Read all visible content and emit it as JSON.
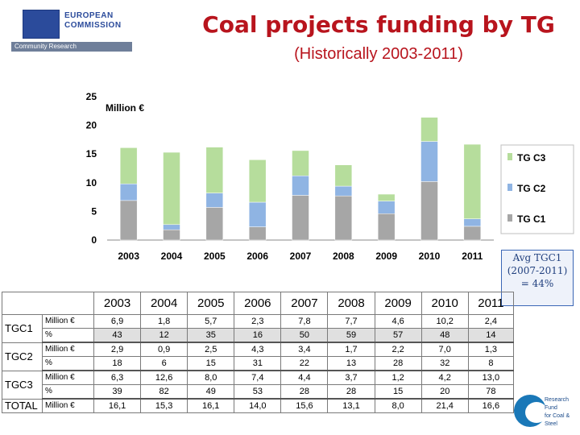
{
  "header": {
    "org_line1": "EUROPEAN",
    "org_line2": "COMMISSION",
    "org_sub": "Community Research",
    "title": "Coal projects funding by TG",
    "subtitle": "(Historically 2003-2011)"
  },
  "chart_data": {
    "type": "bar",
    "stacked": true,
    "categories": [
      "2003",
      "2004",
      "2005",
      "2006",
      "2007",
      "2008",
      "2009",
      "2010",
      "2011"
    ],
    "series": [
      {
        "name": "TG C1",
        "color": "#a6a6a6",
        "values": [
          6.9,
          1.8,
          5.7,
          2.3,
          7.8,
          7.7,
          4.6,
          10.2,
          2.4
        ]
      },
      {
        "name": "TG C2",
        "color": "#8fb4e3",
        "values": [
          2.9,
          0.9,
          2.5,
          4.3,
          3.4,
          1.7,
          2.2,
          7.0,
          1.3
        ]
      },
      {
        "name": "TG C3",
        "color": "#b6dd9c",
        "values": [
          6.3,
          12.6,
          8.0,
          7.4,
          4.4,
          3.7,
          1.2,
          4.2,
          13.0
        ]
      }
    ],
    "ylabel": "Million €",
    "yticks": [
      0,
      5,
      10,
      15,
      20,
      25
    ],
    "ylim": [
      0,
      25
    ],
    "legend_position": "right",
    "legend_order": [
      "TG C3",
      "TG C2",
      "TG C1"
    ]
  },
  "note": "Avg TGC1 (2007-2011) = 44%",
  "table": {
    "years": [
      "2003",
      "2004",
      "2005",
      "2006",
      "2007",
      "2008",
      "2009",
      "2010",
      "2011"
    ],
    "rows": [
      {
        "group": "TGC1",
        "million_label": "Million €",
        "pct_label": "%",
        "million": [
          "6,9",
          "1,8",
          "5,7",
          "2,3",
          "7,8",
          "7,7",
          "4,6",
          "10,2",
          "2,4"
        ],
        "pct": [
          "43",
          "12",
          "35",
          "16",
          "50",
          "59",
          "57",
          "48",
          "14"
        ]
      },
      {
        "group": "TGC2",
        "million_label": "Million €",
        "pct_label": "%",
        "million": [
          "2,9",
          "0,9",
          "2,5",
          "4,3",
          "3,4",
          "1,7",
          "2,2",
          "7,0",
          "1,3"
        ],
        "pct": [
          "18",
          "6",
          "15",
          "31",
          "22",
          "13",
          "28",
          "32",
          "8"
        ]
      },
      {
        "group": "TGC3",
        "million_label": "Million €",
        "pct_label": "%",
        "million": [
          "6,3",
          "12,6",
          "8,0",
          "7,4",
          "4,4",
          "3,7",
          "1,2",
          "4,2",
          "13,0"
        ],
        "pct": [
          "39",
          "82",
          "49",
          "53",
          "28",
          "28",
          "15",
          "20",
          "78"
        ]
      }
    ],
    "total": {
      "label": "TOTAL",
      "unit": "Million €",
      "values": [
        "16,1",
        "15,3",
        "16,1",
        "14,0",
        "15,6",
        "13,1",
        "8,0",
        "21,4",
        "16,6"
      ]
    }
  },
  "footer_logo": {
    "line1": "Research Fund",
    "line2": "for Coal & Steel"
  }
}
